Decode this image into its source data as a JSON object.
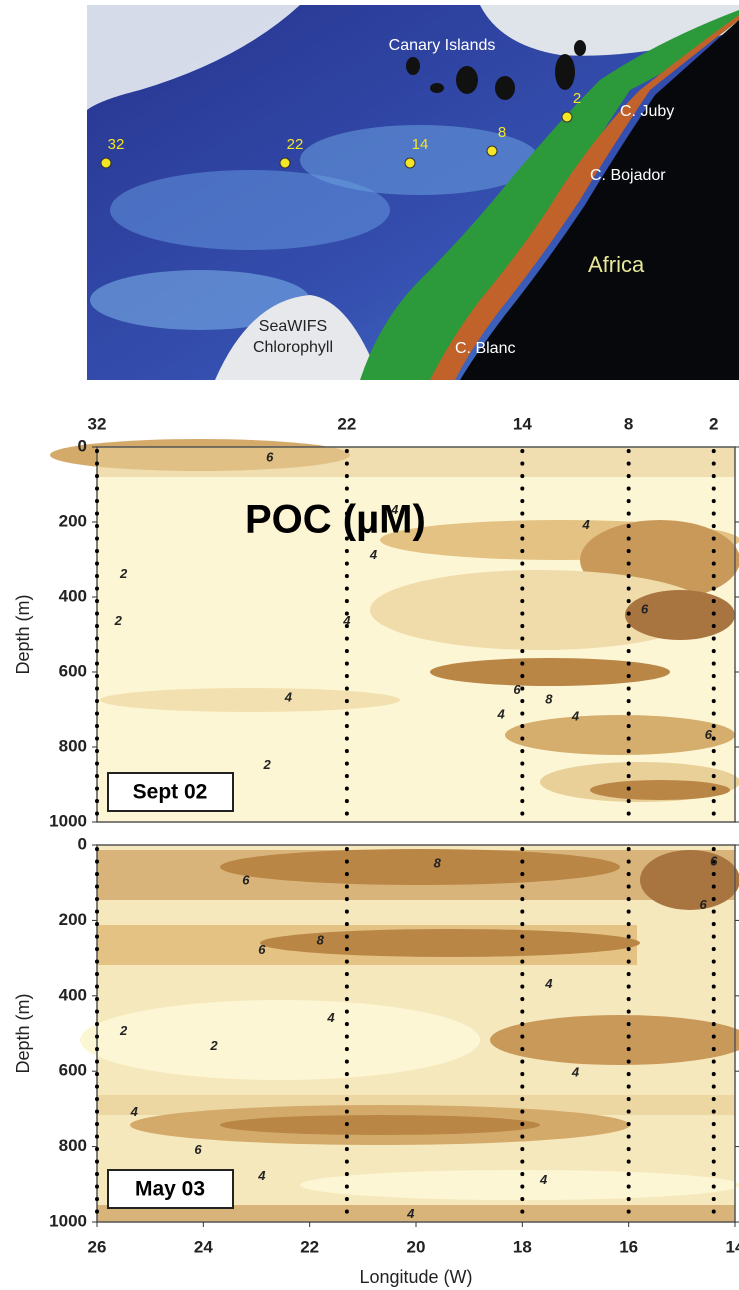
{
  "map": {
    "labels": {
      "islands": "Canary Islands",
      "juby": "C. Juby",
      "bojador": "C. Bojador",
      "continent": "Africa",
      "sensor": "SeaWIFS",
      "product": "Chlorophyll",
      "blanc": "C. Blanc"
    }
  },
  "stations": [
    {
      "name": "32",
      "longitude": 26
    },
    {
      "name": "22",
      "longitude": 21.3
    },
    {
      "name": "14",
      "longitude": 18
    },
    {
      "name": "8",
      "longitude": 16
    },
    {
      "name": "2",
      "longitude": 14.4
    }
  ],
  "chart_data": [
    {
      "type": "contour",
      "title": "POC (µM)",
      "panel_label": "Sept 02",
      "y_label": "Depth (m)",
      "xlim": [
        26,
        14
      ],
      "ylim": [
        0,
        1000
      ],
      "y_inverted": true,
      "yticks": [
        0,
        200,
        400,
        600,
        800,
        1000
      ],
      "contour_labels": [
        {
          "x": 22.75,
          "y": 30,
          "level": 6
        },
        {
          "x": 20.4,
          "y": 170,
          "level": 4
        },
        {
          "x": 16.8,
          "y": 210,
          "level": 4
        },
        {
          "x": 20.8,
          "y": 290,
          "level": 4
        },
        {
          "x": 25.5,
          "y": 340,
          "level": 2
        },
        {
          "x": 25.6,
          "y": 465,
          "level": 2
        },
        {
          "x": 21.3,
          "y": 465,
          "level": 4
        },
        {
          "x": 15.7,
          "y": 435,
          "level": 6
        },
        {
          "x": 22.4,
          "y": 670,
          "level": 4
        },
        {
          "x": 18.1,
          "y": 650,
          "level": 6
        },
        {
          "x": 17.5,
          "y": 675,
          "level": 8
        },
        {
          "x": 17,
          "y": 720,
          "level": 4
        },
        {
          "x": 18.4,
          "y": 715,
          "level": 4
        },
        {
          "x": 22.8,
          "y": 850,
          "level": 2
        },
        {
          "x": 14.5,
          "y": 770,
          "level": 6
        }
      ]
    },
    {
      "type": "contour",
      "panel_label": "May 03",
      "y_label": "Depth (m)",
      "x_label": "Longitude (W)",
      "xlim": [
        26,
        14
      ],
      "ylim": [
        0,
        1000
      ],
      "y_inverted": true,
      "yticks": [
        0,
        200,
        400,
        600,
        800,
        1000
      ],
      "xticks": [
        26,
        24,
        22,
        20,
        18,
        16,
        14
      ],
      "contour_labels": [
        {
          "x": 19.6,
          "y": 50,
          "level": 8
        },
        {
          "x": 23.2,
          "y": 95,
          "level": 6
        },
        {
          "x": 14.4,
          "y": 45,
          "level": 6
        },
        {
          "x": 14.6,
          "y": 160,
          "level": 6
        },
        {
          "x": 21.8,
          "y": 255,
          "level": 8
        },
        {
          "x": 22.9,
          "y": 280,
          "level": 6
        },
        {
          "x": 17.5,
          "y": 370,
          "level": 4
        },
        {
          "x": 21.6,
          "y": 460,
          "level": 4
        },
        {
          "x": 23.8,
          "y": 535,
          "level": 2
        },
        {
          "x": 25.5,
          "y": 495,
          "level": 2
        },
        {
          "x": 17,
          "y": 605,
          "level": 4
        },
        {
          "x": 25.3,
          "y": 710,
          "level": 4
        },
        {
          "x": 24.1,
          "y": 810,
          "level": 6
        },
        {
          "x": 22.9,
          "y": 880,
          "level": 4
        },
        {
          "x": 17.6,
          "y": 890,
          "level": 4
        },
        {
          "x": 20.1,
          "y": 980,
          "level": 4
        }
      ]
    }
  ]
}
